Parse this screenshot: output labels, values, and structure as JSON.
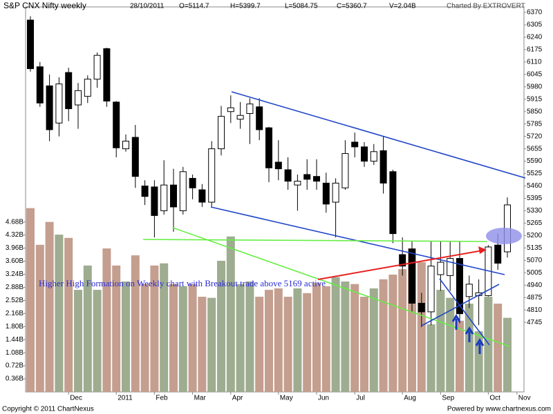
{
  "chart_data": {
    "type": "candlestick",
    "title": "S&P CNX Nifty weekly",
    "info": [
      "28/10/2011",
      "O=5114.7",
      "H=5399.7",
      "L=5084.75",
      "C=5360.7",
      "V=2.04B",
      "Charted By EXTROVERT"
    ],
    "annotation": "Higher High Formation on Weekly chart with Breakout trade above 5169 active",
    "footer": [
      "Copyright © 2011 ChartNexus",
      "Powered by www.chartnexus.com"
    ],
    "categories": [
      null,
      null,
      null,
      null,
      "Dec",
      null,
      null,
      null,
      null,
      "2011",
      null,
      null,
      null,
      "Feb",
      null,
      null,
      null,
      "Mar",
      null,
      null,
      null,
      "Apr",
      null,
      null,
      null,
      null,
      "May",
      null,
      null,
      null,
      "Jun",
      null,
      null,
      null,
      "Jul",
      null,
      null,
      null,
      null,
      "Aug",
      null,
      null,
      null,
      "Sep",
      null,
      null,
      null,
      null,
      "Oct",
      null,
      null,
      "Nov"
    ],
    "open": [
      6330,
      6085,
      5985,
      5790,
      6055,
      5885,
      5930,
      6020,
      6180,
      5900,
      5655,
      5715,
      5460,
      5455,
      5330,
      5465,
      5330,
      5500,
      5440,
      5375,
      5655,
      5850,
      5810,
      5840,
      5875,
      5765,
      5585,
      5545,
      5465,
      5520,
      5510,
      5475,
      5375,
      5450,
      5690,
      5665,
      5590,
      5645,
      5535,
      5100,
      5130,
      4845,
      4800,
      4995,
      4990,
      5080,
      4880,
      4885,
      4885,
      5150,
      5114.7,
      null
    ],
    "high": [
      6350,
      6110,
      6045,
      6030,
      6080,
      6000,
      6040,
      6160,
      6185,
      5905,
      5730,
      5780,
      5490,
      5490,
      5595,
      5550,
      5560,
      5520,
      5470,
      5695,
      5880,
      5935,
      5900,
      5920,
      5920,
      5770,
      5700,
      5610,
      5520,
      5600,
      5600,
      5530,
      5500,
      5700,
      5740,
      5690,
      5680,
      5720,
      5545,
      5190,
      5170,
      4900,
      5170,
      5170,
      5170,
      5170,
      4990,
      4970,
      5150,
      5210,
      5399.7,
      null
    ],
    "low": [
      6060,
      5875,
      5695,
      5720,
      5800,
      5760,
      5895,
      5975,
      5875,
      5610,
      5640,
      5450,
      5360,
      5190,
      5310,
      5220,
      5310,
      5390,
      5350,
      5350,
      5620,
      5790,
      5760,
      5680,
      5700,
      5480,
      5490,
      5440,
      5330,
      5440,
      5440,
      5320,
      5190,
      5440,
      5610,
      5560,
      5570,
      5420,
      5160,
      4990,
      4800,
      4720,
      4730,
      4910,
      4910,
      4740,
      4820,
      4730,
      4880,
      5020,
      5084.75,
      null
    ],
    "close": [
      6075,
      5895,
      5755,
      5995,
      5865,
      5960,
      6020,
      6145,
      5905,
      5660,
      5695,
      5510,
      5405,
      5305,
      5465,
      5350,
      5535,
      5450,
      5375,
      5655,
      5825,
      5870,
      5830,
      5890,
      5755,
      5555,
      5550,
      5485,
      5485,
      5495,
      5485,
      5365,
      5475,
      5630,
      5665,
      5590,
      5640,
      5475,
      5210,
      5040,
      4845,
      4800,
      5040,
      5060,
      5080,
      4790,
      4945,
      4900,
      5140,
      5055,
      5360.7,
      null
    ],
    "volume": [
      5.06,
      4.05,
      4.68,
      4.33,
      4.24,
      2.81,
      3.48,
      2.81,
      3.95,
      3.48,
      3.04,
      3.76,
      2.97,
      3.48,
      3.54,
      2.97,
      2.91,
      2.97,
      2.62,
      2.59,
      3.61,
      4.28,
      2.97,
      3.04,
      2.62,
      2.81,
      2.85,
      2.62,
      2.85,
      2.72,
      3,
      2.91,
      3.16,
      3.04,
      2.97,
      2.62,
      2.85,
      3.1,
      3.23,
      3.38,
      3.95,
      3.57,
      1.86,
      2.81,
      2.59,
      1.96,
      2.43,
      1.67,
      2.62,
      2.43,
      2.04,
      null
    ],
    "up_color": "#ffffff",
    "down_color": "#000000",
    "volume_up_color": "#9eac90",
    "volume_down_color": "#c49e8e",
    "ylim": [
      4380,
      6399
    ],
    "yticks": [
      4745,
      4810,
      4875,
      4940,
      5005,
      5070,
      5135,
      5200,
      5265,
      5330,
      5395,
      5460,
      5525,
      5590,
      5655,
      5720,
      5785,
      5850,
      5915,
      5980,
      6045,
      6110,
      6175,
      6240,
      6305,
      6370
    ],
    "y2lim": [
      0,
      10.6
    ],
    "y2ticks": [
      {
        "value": 0.36,
        "label": "0.36B"
      },
      {
        "value": 0.72,
        "label": "0.72B"
      },
      {
        "value": 1.08,
        "label": "1.08B"
      },
      {
        "value": 1.44,
        "label": "1.44B"
      },
      {
        "value": 1.8,
        "label": "1.80B"
      },
      {
        "value": 2.16,
        "label": "2.16B"
      },
      {
        "value": 2.52,
        "label": "2.52B"
      },
      {
        "value": 2.88,
        "label": "2.88B"
      },
      {
        "value": 3.24,
        "label": "3.24B"
      },
      {
        "value": 3.6,
        "label": "3.60B"
      },
      {
        "value": 3.96,
        "label": "3.96B"
      },
      {
        "value": 4.32,
        "label": "4.32B"
      },
      {
        "value": 4.68,
        "label": "4.68B"
      }
    ]
  }
}
